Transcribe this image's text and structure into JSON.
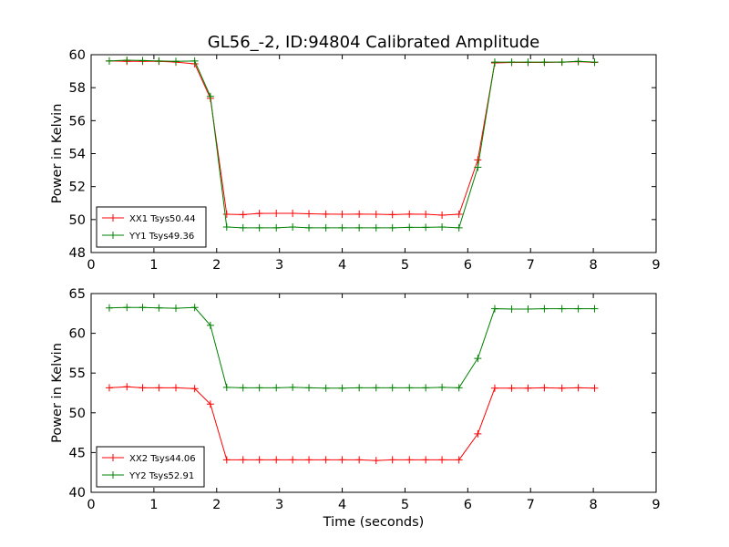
{
  "chart_data": {
    "type": "line",
    "title": "GL56_-2, ID:94804 Calibrated Amplitude",
    "xlabel": "Time (seconds)",
    "grid": false,
    "colors": {
      "red": "#ff0000",
      "green": "#008000"
    },
    "panels": [
      {
        "ylabel": "Power in Kelvin",
        "xlim": [
          0,
          9
        ],
        "ylim": [
          48,
          60
        ],
        "xticks": [
          0,
          1,
          2,
          3,
          4,
          5,
          6,
          7,
          8,
          9
        ],
        "yticks": [
          48,
          50,
          52,
          54,
          56,
          58,
          60
        ],
        "legend_position": "lower-left",
        "x": [
          0.29,
          0.57,
          0.82,
          1.08,
          1.35,
          1.65,
          1.9,
          2.16,
          2.42,
          2.68,
          2.95,
          3.21,
          3.47,
          3.74,
          4.0,
          4.27,
          4.54,
          4.8,
          5.07,
          5.33,
          5.59,
          5.86,
          6.16,
          6.43,
          6.7,
          6.96,
          7.22,
          7.5,
          7.76,
          8.02
        ],
        "series": [
          {
            "name": "XX1 Tsys50.44",
            "color": "#ff0000",
            "values": [
              59.62,
              59.6,
              59.6,
              59.6,
              59.55,
              59.45,
              57.35,
              50.32,
              50.3,
              50.37,
              50.38,
              50.38,
              50.35,
              50.33,
              50.32,
              50.33,
              50.32,
              50.3,
              50.33,
              50.32,
              50.27,
              50.32,
              53.62,
              59.5,
              59.53,
              59.53,
              59.53,
              59.55,
              59.58,
              59.53
            ]
          },
          {
            "name": "YY1 Tsys49.36",
            "color": "#008000",
            "values": [
              59.62,
              59.67,
              59.65,
              59.62,
              59.6,
              59.62,
              57.47,
              49.55,
              49.5,
              49.5,
              49.5,
              49.55,
              49.5,
              49.5,
              49.5,
              49.5,
              49.5,
              49.5,
              49.53,
              49.53,
              49.55,
              49.5,
              53.17,
              59.55,
              59.55,
              59.55,
              59.55,
              59.55,
              59.6,
              59.55
            ]
          }
        ]
      },
      {
        "ylabel": "Power in Kelvin",
        "xlim": [
          0,
          9
        ],
        "ylim": [
          40,
          65
        ],
        "xticks": [
          0,
          1,
          2,
          3,
          4,
          5,
          6,
          7,
          8,
          9
        ],
        "yticks": [
          40,
          45,
          50,
          55,
          60,
          65
        ],
        "legend_position": "lower-left",
        "x": [
          0.29,
          0.57,
          0.82,
          1.08,
          1.35,
          1.65,
          1.9,
          2.16,
          2.42,
          2.68,
          2.95,
          3.21,
          3.47,
          3.74,
          4.0,
          4.27,
          4.54,
          4.8,
          5.07,
          5.33,
          5.59,
          5.86,
          6.16,
          6.43,
          6.7,
          6.96,
          7.22,
          7.5,
          7.76,
          8.02
        ],
        "series": [
          {
            "name": "XX2 Tsys44.06",
            "color": "#ff0000",
            "values": [
              53.15,
              53.27,
              53.15,
              53.15,
              53.15,
              53.04,
              51.1,
              44.08,
              44.08,
              44.08,
              44.08,
              44.08,
              44.08,
              44.08,
              44.08,
              44.08,
              44.0,
              44.08,
              44.08,
              44.08,
              44.08,
              44.08,
              47.35,
              53.1,
              53.1,
              53.1,
              53.15,
              53.1,
              53.15,
              53.1
            ]
          },
          {
            "name": "YY2 Tsys52.91",
            "color": "#008000",
            "values": [
              63.2,
              63.25,
              63.25,
              63.2,
              63.15,
              63.25,
              61.0,
              53.2,
              53.15,
              53.15,
              53.15,
              53.2,
              53.15,
              53.1,
              53.1,
              53.15,
              53.15,
              53.15,
              53.15,
              53.15,
              53.2,
              53.15,
              56.85,
              63.1,
              63.05,
              63.05,
              63.1,
              63.1,
              63.1,
              63.1
            ]
          }
        ]
      }
    ]
  }
}
